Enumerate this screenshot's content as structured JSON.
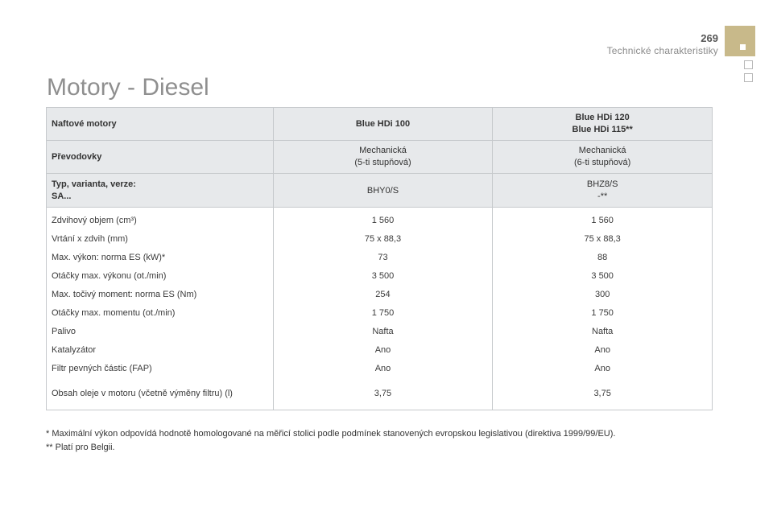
{
  "header": {
    "page_number": "269",
    "section_title": "Technické charakteristiky"
  },
  "title": "Motory - Diesel",
  "table": {
    "engines_label": "Naftové motory",
    "engine_1": "Blue HDi 100",
    "engine_2_line1": "Blue HDi 120",
    "engine_2_line2": "Blue HDi 115**",
    "gearbox_label": "Převodovky",
    "gearbox_1_line1": "Mechanická",
    "gearbox_1_line2": "(5-ti stupňová)",
    "gearbox_2_line1": "Mechanická",
    "gearbox_2_line2": "(6-ti stupňová)",
    "type_label_line1": "Typ, varianta, verze:",
    "type_label_line2": "SA...",
    "type_1": "BHY0/S",
    "type_2_line1": "BHZ8/S",
    "type_2_line2": "-**",
    "rows": [
      {
        "label": "Zdvihový objem (cm³)",
        "v1": "1 560",
        "v2": "1 560"
      },
      {
        "label": "Vrtání x zdvih (mm)",
        "v1": "75 x 88,3",
        "v2": "75 x 88,3"
      },
      {
        "label": "Max. výkon: norma ES (kW)*",
        "v1": "73",
        "v2": "88"
      },
      {
        "label": "Otáčky max. výkonu (ot./min)",
        "v1": "3 500",
        "v2": "3 500"
      },
      {
        "label": "Max. točivý moment: norma ES (Nm)",
        "v1": "254",
        "v2": "300"
      },
      {
        "label": "Otáčky max. momentu (ot./min)",
        "v1": "1 750",
        "v2": "1 750"
      },
      {
        "label": "Palivo",
        "v1": "Nafta",
        "v2": "Nafta"
      },
      {
        "label": "Katalyzátor",
        "v1": "Ano",
        "v2": "Ano"
      },
      {
        "label": "Filtr pevných částic (FAP)",
        "v1": "Ano",
        "v2": "Ano"
      },
      {
        "label": "Obsah oleje v motoru (včetně výměny filtru) (l)",
        "v1": "3,75",
        "v2": "3,75"
      }
    ]
  },
  "footnotes": {
    "note_1": "* Maximální výkon odpovídá hodnotě homologované na měřicí stolici podle podmínek stanovených evropskou legislativou (direktiva 1999/99/EU).",
    "note_2": "** Platí pro Belgii."
  }
}
